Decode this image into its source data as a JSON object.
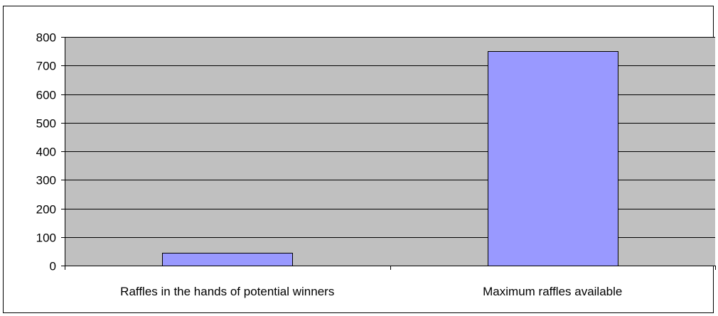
{
  "chart_data": {
    "type": "bar",
    "title": "",
    "xlabel": "",
    "ylabel": "",
    "categories": [
      "Raffles in the hands of potential winners",
      "Maximum raffles available"
    ],
    "values": [
      45,
      750
    ],
    "ylim": [
      0,
      800
    ],
    "yticks": [
      0,
      100,
      200,
      300,
      400,
      500,
      600,
      700,
      800
    ],
    "grid": true,
    "legend": "none",
    "colors": {
      "bar_fill": "#9999ff",
      "plot_background": "#c0c0c0",
      "gridline": "#000000",
      "outline": "#000000"
    }
  }
}
